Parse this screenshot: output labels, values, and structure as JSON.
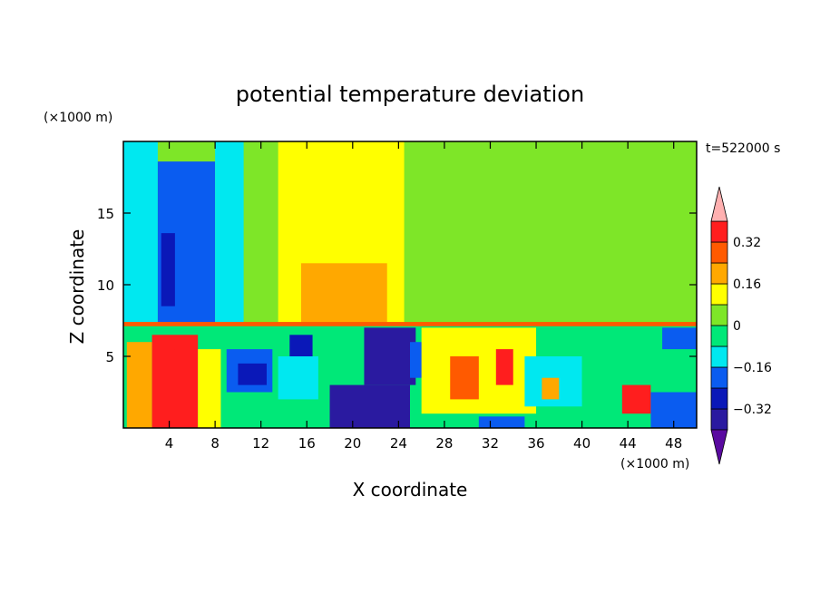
{
  "chart_data": {
    "type": "heatmap",
    "title": "potential temperature deviation",
    "xlabel": "X coordinate",
    "ylabel": "Z coordinate",
    "x_unit_label": "(×1000 m)",
    "y_unit_label": "(×1000 m)",
    "time_label": "t=522000 s",
    "xlim": [
      0,
      50
    ],
    "ylim": [
      0,
      20
    ],
    "x_ticks": [
      4,
      8,
      12,
      16,
      20,
      24,
      28,
      32,
      36,
      40,
      44,
      48
    ],
    "y_ticks": [
      5,
      10,
      15
    ],
    "colorbar": {
      "levels": [
        -0.4,
        -0.32,
        -0.24,
        -0.16,
        -0.08,
        0,
        0.08,
        0.16,
        0.24,
        0.32,
        0.4
      ],
      "labeled_ticks": [
        0.32,
        0.16,
        0,
        -0.16,
        -0.32
      ],
      "tick_labels": [
        "0.32",
        "0.16",
        "0",
        "−0.16",
        "−0.32"
      ],
      "colors": [
        "#5a0aa0",
        "#2a1aa0",
        "#0a18b8",
        "#0a5cf0",
        "#00e8f0",
        "#00e878",
        "#7ee628",
        "#ffff00",
        "#ffa800",
        "#ff5a00",
        "#ff1e1e",
        "#ffb0b0"
      ]
    },
    "regions": [
      {
        "x": [
          0,
          50
        ],
        "y": [
          7.3,
          20
        ],
        "value": 0.02
      },
      {
        "x": [
          0,
          3
        ],
        "y": [
          7.3,
          20
        ],
        "value": -0.12
      },
      {
        "x": [
          3,
          8
        ],
        "y": [
          7.3,
          18.6
        ],
        "value": -0.2
      },
      {
        "x": [
          3.3,
          4.5
        ],
        "y": [
          8.5,
          13.6
        ],
        "value": -0.28
      },
      {
        "x": [
          8,
          10.5
        ],
        "y": [
          7.3,
          20
        ],
        "value": -0.1
      },
      {
        "x": [
          10.5,
          13.5
        ],
        "y": [
          7.3,
          20
        ],
        "value": 0.04
      },
      {
        "x": [
          13.5,
          24.5
        ],
        "y": [
          7.3,
          20
        ],
        "value": 0.12
      },
      {
        "x": [
          15.5,
          23
        ],
        "y": [
          7.3,
          11.5
        ],
        "value": 0.2
      },
      {
        "x": [
          24.5,
          29
        ],
        "y": [
          7.3,
          20
        ],
        "value": 0.04
      },
      {
        "x": [
          29,
          37
        ],
        "y": [
          7.3,
          20
        ],
        "value": 0.0
      },
      {
        "x": [
          37,
          45
        ],
        "y": [
          7.5,
          17.5
        ],
        "value": 0.05
      },
      {
        "x": [
          45,
          50
        ],
        "y": [
          7.3,
          20
        ],
        "value": 0.0
      },
      {
        "x": [
          0,
          50
        ],
        "y": [
          0,
          7.3
        ],
        "value": -0.04
      },
      {
        "x": [
          0.3,
          2.5
        ],
        "y": [
          0,
          6
        ],
        "value": 0.2
      },
      {
        "x": [
          2.5,
          6.5
        ],
        "y": [
          0,
          6.5
        ],
        "value": 0.32
      },
      {
        "x": [
          3,
          4.5
        ],
        "y": [
          0.3,
          5.5
        ],
        "value": 0.36
      },
      {
        "x": [
          5,
          6
        ],
        "y": [
          0.3,
          5
        ],
        "value": 0.36
      },
      {
        "x": [
          6.5,
          8.5
        ],
        "y": [
          0,
          5.5
        ],
        "value": 0.14
      },
      {
        "x": [
          9,
          13
        ],
        "y": [
          2.5,
          5.5
        ],
        "value": -0.2
      },
      {
        "x": [
          10,
          12.5
        ],
        "y": [
          3,
          4.5
        ],
        "value": -0.28
      },
      {
        "x": [
          13.5,
          17
        ],
        "y": [
          2,
          5
        ],
        "value": -0.14
      },
      {
        "x": [
          14.5,
          16.5
        ],
        "y": [
          5,
          6.5
        ],
        "value": -0.28
      },
      {
        "x": [
          18,
          25
        ],
        "y": [
          0,
          3
        ],
        "value": -0.36
      },
      {
        "x": [
          21,
          25.5
        ],
        "y": [
          3,
          7
        ],
        "value": -0.34
      },
      {
        "x": [
          25,
          28
        ],
        "y": [
          3.5,
          6
        ],
        "value": -0.2
      },
      {
        "x": [
          26,
          36
        ],
        "y": [
          1,
          7
        ],
        "value": 0.1
      },
      {
        "x": [
          28.5,
          31
        ],
        "y": [
          2,
          5
        ],
        "value": 0.28
      },
      {
        "x": [
          32.5,
          34
        ],
        "y": [
          3,
          5.5
        ],
        "value": 0.36
      },
      {
        "x": [
          31,
          35
        ],
        "y": [
          0,
          0.8
        ],
        "value": -0.24
      },
      {
        "x": [
          35,
          40
        ],
        "y": [
          1.5,
          5
        ],
        "value": -0.12
      },
      {
        "x": [
          36.5,
          38
        ],
        "y": [
          2,
          3.5
        ],
        "value": 0.16
      },
      {
        "x": [
          40,
          44
        ],
        "y": [
          2,
          6
        ],
        "value": -0.06
      },
      {
        "x": [
          43.5,
          46
        ],
        "y": [
          1,
          3
        ],
        "value": 0.36
      },
      {
        "x": [
          46,
          50
        ],
        "y": [
          0,
          2.5
        ],
        "value": -0.2
      },
      {
        "x": [
          47,
          50
        ],
        "y": [
          5.5,
          7
        ],
        "value": -0.24
      },
      {
        "x": [
          0,
          50
        ],
        "y": [
          7.1,
          7.4
        ],
        "value": 0.3
      }
    ]
  }
}
